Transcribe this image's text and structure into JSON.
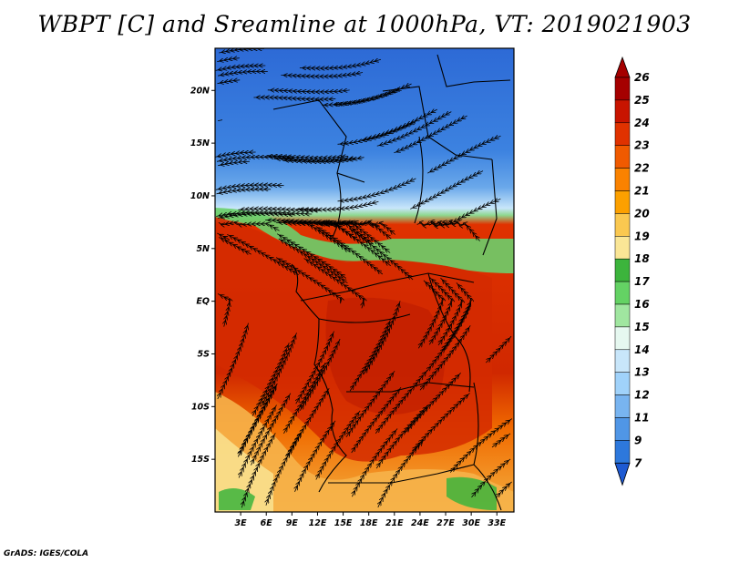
{
  "title": "WBPT [C] and Sreamline at 1000hPa, VT: 2019021903",
  "credit": "GrADS: IGES/COLA",
  "map": {
    "lon_range": [
      0,
      35
    ],
    "lat_range": [
      -20,
      24
    ],
    "lat_ticks": [
      {
        "value": 20,
        "label": "20N"
      },
      {
        "value": 15,
        "label": "15N"
      },
      {
        "value": 10,
        "label": "10N"
      },
      {
        "value": 5,
        "label": "5N"
      },
      {
        "value": 0,
        "label": "EQ"
      },
      {
        "value": -5,
        "label": "5S"
      },
      {
        "value": -10,
        "label": "10S"
      },
      {
        "value": -15,
        "label": "15S"
      }
    ],
    "lon_ticks": [
      {
        "value": 3,
        "label": "3E"
      },
      {
        "value": 6,
        "label": "6E"
      },
      {
        "value": 9,
        "label": "9E"
      },
      {
        "value": 12,
        "label": "12E"
      },
      {
        "value": 15,
        "label": "15E"
      },
      {
        "value": 18,
        "label": "18E"
      },
      {
        "value": 21,
        "label": "21E"
      },
      {
        "value": 24,
        "label": "24E"
      },
      {
        "value": 27,
        "label": "27E"
      },
      {
        "value": 30,
        "label": "30E"
      },
      {
        "value": 33,
        "label": "33E"
      }
    ]
  },
  "colorbar": {
    "levels": [
      {
        "label": "26",
        "color": "#a50000"
      },
      {
        "label": "25",
        "color": "#c81400"
      },
      {
        "label": "24",
        "color": "#e03200"
      },
      {
        "label": "23",
        "color": "#f05a00"
      },
      {
        "label": "22",
        "color": "#fa8200"
      },
      {
        "label": "21",
        "color": "#fca000"
      },
      {
        "label": "20",
        "color": "#fac850"
      },
      {
        "label": "19",
        "color": "#fae696"
      },
      {
        "label": "18",
        "color": "#3cb43c"
      },
      {
        "label": "17",
        "color": "#64d264"
      },
      {
        "label": "16",
        "color": "#a0e6a0"
      },
      {
        "label": "15",
        "color": "#e6f8f0"
      },
      {
        "label": "14",
        "color": "#c8e6fa"
      },
      {
        "label": "13",
        "color": "#a0d2fa"
      },
      {
        "label": "12",
        "color": "#78b4f0"
      },
      {
        "label": "11",
        "color": "#5096e6"
      },
      {
        "label": "9",
        "color": "#2d78dc"
      },
      {
        "label": "7",
        "color": "#1e5ad2"
      }
    ],
    "over_color": "#a50000",
    "under_color": "#1e5ad2"
  }
}
